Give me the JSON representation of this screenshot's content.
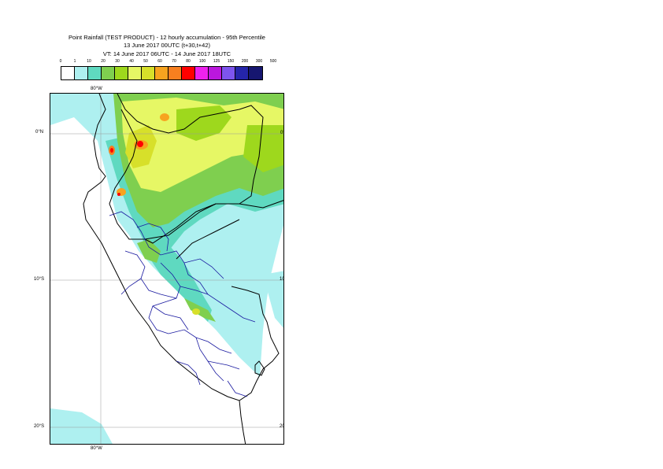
{
  "title": {
    "line1": "Point Rainfall (TEST PRODUCT) - 12 hourly accumulation - 95th Percentile",
    "line2": "13 June 2017 00UTC (t+30,t+42)",
    "line3": "VT: 14 June 2017 06UTC - 14 June 2017 18UTC"
  },
  "scale": {
    "labels": [
      "0",
      "1",
      "10",
      "20",
      "30",
      "40",
      "50",
      "60",
      "70",
      "80",
      "100",
      "125",
      "150",
      "200",
      "300",
      "500"
    ],
    "colors": [
      "#ffffff",
      "#aef0f0",
      "#5fd9c0",
      "#7fcf4f",
      "#9ed81d",
      "#e6f765",
      "#d7e02a",
      "#f7a31f",
      "#f77f1f",
      "#ff0000",
      "#ee22ee",
      "#bb17dd",
      "#7d55ee",
      "#2525aa",
      "#161670"
    ]
  },
  "axes": {
    "top_lon": "80°W",
    "bottom_lon": "80°W",
    "lat_labels": [
      "0°N",
      "10°S",
      "20°S"
    ]
  }
}
